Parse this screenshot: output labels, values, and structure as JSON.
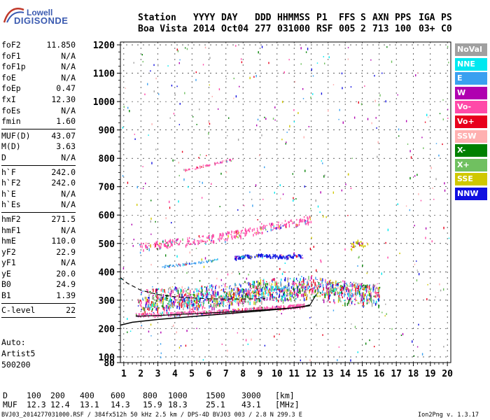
{
  "logo": {
    "line1": "Lowell",
    "line2": "DIGISONDE"
  },
  "header": {
    "labels": [
      "Station",
      "YYYY",
      "DAY",
      "DDD",
      "HHMMSS",
      "P1",
      "FFS",
      "S",
      "AXN",
      "PPS",
      "IGA",
      "PS"
    ],
    "values": [
      "Boa Vista",
      "2014",
      "Oct04",
      "277",
      "031000",
      "RSF",
      "005",
      "2",
      "713",
      "100",
      "03+",
      "C0"
    ]
  },
  "params": {
    "group1": [
      {
        "name": "foF2",
        "value": "11.850"
      },
      {
        "name": "foF1",
        "value": "N/A"
      },
      {
        "name": "foF1p",
        "value": "N/A"
      },
      {
        "name": "foE",
        "value": "N/A"
      },
      {
        "name": "foEp",
        "value": "0.47"
      },
      {
        "name": "fxI",
        "value": "12.30"
      },
      {
        "name": "foEs",
        "value": "N/A"
      },
      {
        "name": "fmin",
        "value": "1.60"
      }
    ],
    "group2": [
      {
        "name": "MUF(D)",
        "value": "43.07"
      },
      {
        "name": "M(D)",
        "value": "3.63"
      },
      {
        "name": "D",
        "value": "N/A"
      }
    ],
    "group3": [
      {
        "name": "h`F",
        "value": "242.0"
      },
      {
        "name": "h`F2",
        "value": "242.0"
      },
      {
        "name": "h`E",
        "value": "N/A"
      },
      {
        "name": "h`Es",
        "value": "N/A"
      }
    ],
    "group4": [
      {
        "name": "hmF2",
        "value": "271.5"
      },
      {
        "name": "hmF1",
        "value": "N/A"
      },
      {
        "name": "hmE",
        "value": "110.0"
      },
      {
        "name": "yF2",
        "value": "22.9"
      },
      {
        "name": "yF1",
        "value": "N/A"
      },
      {
        "name": "yE",
        "value": "20.0"
      },
      {
        "name": "B0",
        "value": "24.9"
      },
      {
        "name": "B1",
        "value": "1.39"
      }
    ],
    "group5": [
      {
        "name": "C-level",
        "value": "22"
      }
    ]
  },
  "auto": {
    "line1": "Auto:",
    "line2": "Artist5",
    "line3": "500200"
  },
  "legend": [
    {
      "label": "NoVal",
      "color": "#a0a0a0"
    },
    {
      "label": "NNE",
      "color": "#00e8f0"
    },
    {
      "label": "E",
      "color": "#3aa0f0"
    },
    {
      "label": "W",
      "color": "#b000b0"
    },
    {
      "label": "Vo-",
      "color": "#ff4aa8"
    },
    {
      "label": "Vo+",
      "color": "#e8001c"
    },
    {
      "label": "SSW",
      "color": "#ffb0b0"
    },
    {
      "label": "X-",
      "color": "#008000"
    },
    {
      "label": "X+",
      "color": "#70c060"
    },
    {
      "label": "SSE",
      "color": "#d0c800"
    },
    {
      "label": "NNW",
      "color": "#1010e0"
    }
  ],
  "footer": {
    "d_row": [
      "D",
      "100",
      "200",
      "400",
      "600",
      "800",
      "1000",
      "1500",
      "3000",
      "[km]"
    ],
    "muf_row": [
      "MUF",
      "12.3",
      "12.4",
      "13.1",
      "14.3",
      "15.9",
      "18.3",
      "25.1",
      "43.1",
      "[MHz]"
    ],
    "file_line": "BVJ03_2014277031000.RSF / 384fx512h 50 kHz 2.5 km / DPS-4D BVJ03 003 / 2.8 N 299.3 E",
    "version": "Ion2Png v. 1.3.17"
  },
  "chart_data": {
    "type": "scatter",
    "xlim": [
      0.8,
      20.2
    ],
    "ylim": [
      80,
      1210
    ],
    "x_ticks": [
      1,
      2,
      3,
      4,
      5,
      6,
      7,
      8,
      9,
      10,
      11,
      12,
      13,
      14,
      15,
      16,
      17,
      18,
      19,
      20
    ],
    "y_ticks": [
      80,
      100,
      200,
      300,
      400,
      500,
      600,
      700,
      800,
      900,
      1000,
      1100,
      1200
    ],
    "grid": true,
    "legend_position": "right",
    "traces": {
      "o_trace_main": {
        "series": "Vo-",
        "x": [
          1.7,
          3,
          4,
          5,
          6,
          7,
          8,
          9,
          10,
          11,
          11.6
        ],
        "y": [
          250,
          252,
          254,
          257,
          260,
          263,
          268,
          272,
          276,
          280,
          284
        ]
      },
      "o_trace_second_hop": {
        "series": "Vo-",
        "x": [
          1.8,
          3,
          4,
          5,
          6,
          7,
          8,
          9,
          10,
          11,
          12
        ],
        "y": [
          490,
          497,
          505,
          512,
          520,
          530,
          540,
          552,
          565,
          575,
          588
        ]
      },
      "x_trace": {
        "series": "W",
        "x": [
          1.8,
          3,
          4,
          5,
          6,
          7,
          8,
          9,
          10,
          11,
          12,
          13,
          14,
          15,
          16
        ],
        "y": [
          290,
          292,
          297,
          302,
          305,
          310,
          318,
          325,
          332,
          338,
          344,
          345,
          342,
          338,
          335
        ]
      },
      "w_cluster_450": {
        "series": "NNW",
        "x": [
          7.5,
          8,
          8.5,
          9,
          9.5,
          10,
          10.5,
          11,
          11.5
        ],
        "y": [
          450,
          455,
          458,
          460,
          458,
          457,
          455,
          460,
          456
        ]
      },
      "e_trace_420": {
        "series": "E",
        "x": [
          3,
          3.5,
          4,
          4.5,
          5,
          5.5,
          6,
          6.5
        ],
        "y": [
          420,
          422,
          425,
          428,
          432,
          436,
          440,
          445
        ]
      },
      "high_trace": {
        "series": "Vo-",
        "x": [
          4.5,
          5,
          5.5,
          6,
          6.5,
          7,
          7.5
        ],
        "y": [
          760,
          765,
          772,
          780,
          786,
          792,
          800
        ]
      },
      "spread_f_cluster": {
        "series": "Vo+",
        "x": [
          2,
          3,
          4,
          5,
          6,
          7,
          8,
          9,
          10,
          11,
          12,
          13,
          14,
          15,
          16
        ],
        "y": [
          300,
          305,
          310,
          310,
          315,
          320,
          330,
          335,
          340,
          345,
          350,
          335,
          330,
          320,
          320
        ]
      },
      "sse_cluster_500": {
        "series": "SSE",
        "x": [
          14.3,
          14.5,
          14.8,
          15,
          15.3
        ],
        "y": [
          490,
          500,
          505,
          495,
          500
        ]
      }
    },
    "model_curves": {
      "virtual_height_o": {
        "x": [
          0.8,
          1.5,
          3,
          5,
          7,
          9,
          10.5,
          11.5,
          11.9
        ],
        "y": [
          212,
          222,
          232,
          242,
          252,
          262,
          270,
          277,
          283
        ]
      },
      "virtual_height_x": {
        "x": [
          1.7,
          3,
          5,
          7,
          9,
          11,
          11.9,
          12.1,
          12.3
        ],
        "y": [
          243,
          246,
          252,
          258,
          265,
          273,
          280,
          300,
          320
        ]
      },
      "dashed": {
        "x": [
          0.8,
          1.2,
          2,
          3,
          4,
          5,
          6,
          7,
          8,
          9,
          9.3
        ],
        "y": [
          380,
          360,
          335,
          320,
          312,
          308,
          305,
          304,
          304,
          305,
          306
        ]
      }
    }
  }
}
